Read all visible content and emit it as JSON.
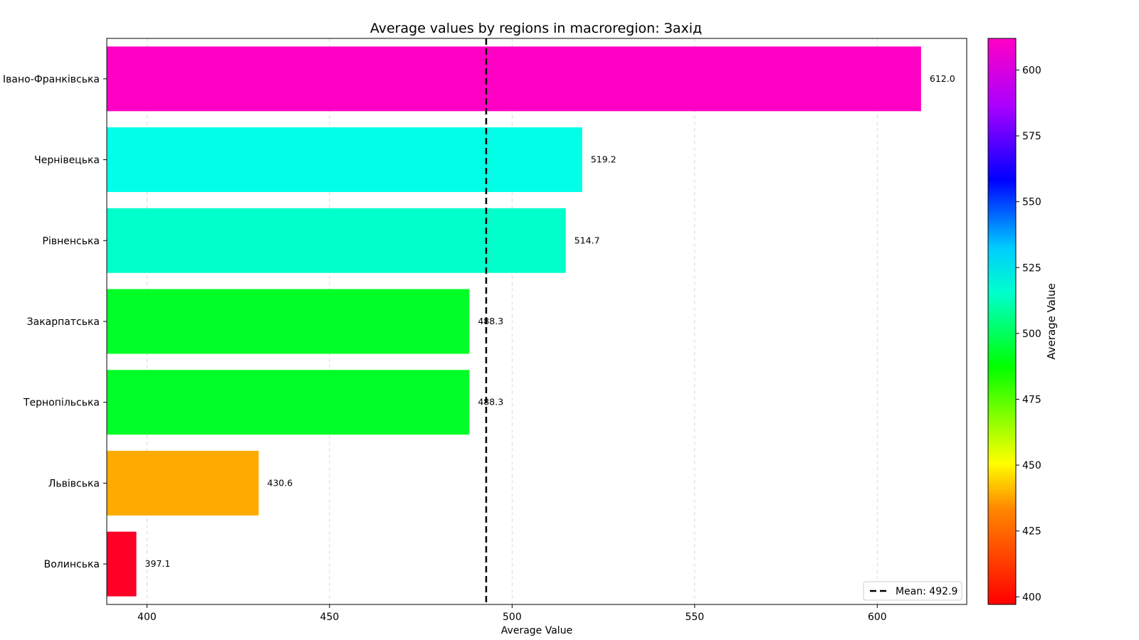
{
  "chart_data": {
    "type": "bar",
    "orientation": "horizontal",
    "title": "Average values by regions in macroregion: Захід",
    "xlabel": "Average Value",
    "ylabel": "",
    "xlim": [
      389,
      624.5
    ],
    "xticks": [
      400,
      450,
      500,
      550,
      600
    ],
    "categories": [
      "Івано-Франківська",
      "Чернівецька",
      "Рівненська",
      "Закарпатська",
      "Тернопільська",
      "Львівська",
      "Волинська"
    ],
    "values": [
      612.0,
      519.2,
      514.7,
      488.3,
      488.3,
      430.6,
      397.1
    ],
    "value_labels": [
      "612.0",
      "519.2",
      "514.7",
      "488.3",
      "488.3",
      "430.6",
      "397.1"
    ],
    "colors": [
      "#ff00c4",
      "#00ffe6",
      "#00ffcb",
      "#00ff27",
      "#00ff27",
      "#ffaa00",
      "#ff0027"
    ],
    "mean": {
      "value": 492.9,
      "legend_label": "Mean: 492.9",
      "style": "dashed",
      "color": "#000000"
    },
    "legend_placement": "lower-right",
    "grid": {
      "x": true,
      "y": false,
      "style": "dashed"
    },
    "colorbar": {
      "label": "Average Value",
      "range": [
        397.1,
        612.0
      ],
      "ticks": [
        400,
        425,
        450,
        475,
        500,
        525,
        550,
        575,
        600
      ],
      "colormap": "gist_rainbow"
    }
  }
}
